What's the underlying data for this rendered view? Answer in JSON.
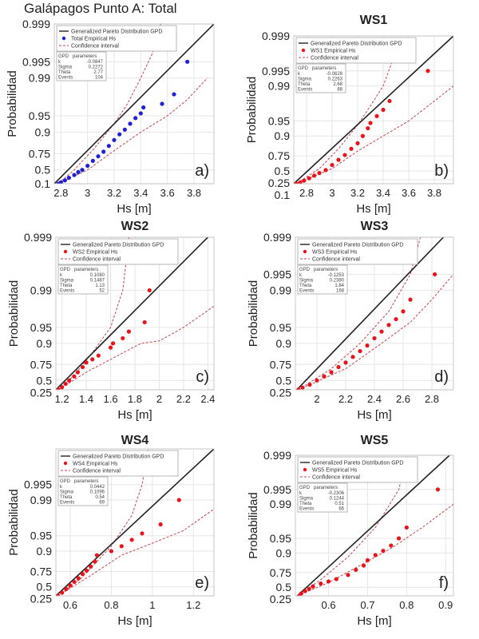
{
  "chart_data": [
    {
      "type": "scatter",
      "panel_label": "a)",
      "title": "Galápagos Punto A: Total",
      "xlabel": "Hs [m]",
      "ylabel": "Probabilidad",
      "xlim": [
        2.75,
        3.95
      ],
      "xticks": [
        2.8,
        3,
        3.2,
        3.4,
        3.6,
        3.8
      ],
      "ylim": [
        0.1,
        0.999
      ],
      "yticks": [
        0.1,
        0.5,
        0.75,
        0.9,
        0.95,
        0.99,
        0.995,
        0.999
      ],
      "y_scale": "probability",
      "grid": true,
      "legend_position": "top-left",
      "point_color": "#1f1fd6",
      "legend": [
        "Generalized Pareto Distribution GPD",
        "Total Empirical Hs",
        "Confidence interval"
      ],
      "params": {
        "header": [
          "GPD",
          "parameters"
        ],
        "rows": [
          [
            "k",
            "-0.0847"
          ],
          [
            "Sigma",
            "0.2272"
          ],
          [
            "Theta",
            "2.77"
          ],
          [
            "Events",
            "104"
          ]
        ]
      },
      "gpd_line": [
        [
          2.75,
          0.1
        ],
        [
          3.95,
          0.999
        ]
      ],
      "ci_upper": [
        [
          2.78,
          0.1
        ],
        [
          2.9,
          0.5
        ],
        [
          3.05,
          0.8
        ],
        [
          3.2,
          0.93
        ],
        [
          3.3,
          0.97
        ],
        [
          3.4,
          0.99
        ],
        [
          3.5,
          0.997
        ],
        [
          3.55,
          0.999
        ]
      ],
      "ci_lower": [
        [
          2.78,
          0.1
        ],
        [
          3.0,
          0.5
        ],
        [
          3.2,
          0.78
        ],
        [
          3.4,
          0.9
        ],
        [
          3.6,
          0.95
        ],
        [
          3.75,
          0.975
        ],
        [
          3.9,
          0.99
        ]
      ],
      "points": [
        [
          2.78,
          0.1
        ],
        [
          2.8,
          0.15
        ],
        [
          2.83,
          0.22
        ],
        [
          2.86,
          0.3
        ],
        [
          2.9,
          0.38
        ],
        [
          2.93,
          0.45
        ],
        [
          2.96,
          0.5
        ],
        [
          3.0,
          0.58
        ],
        [
          3.04,
          0.66
        ],
        [
          3.08,
          0.72
        ],
        [
          3.12,
          0.77
        ],
        [
          3.16,
          0.82
        ],
        [
          3.2,
          0.86
        ],
        [
          3.24,
          0.89
        ],
        [
          3.28,
          0.91
        ],
        [
          3.32,
          0.93
        ],
        [
          3.36,
          0.945
        ],
        [
          3.4,
          0.955
        ],
        [
          3.42,
          0.965
        ],
        [
          3.56,
          0.97
        ],
        [
          3.65,
          0.98
        ],
        [
          3.75,
          0.995
        ]
      ]
    },
    {
      "type": "scatter",
      "panel_label": "b)",
      "title": "WS1",
      "xlabel": "Hs [m]",
      "ylabel": "Probabilidad",
      "xlim": [
        2.7,
        3.95
      ],
      "xticks": [
        2.8,
        3,
        3.2,
        3.4,
        3.6,
        3.8
      ],
      "ylim": [
        0.1,
        0.999
      ],
      "yticks": [
        0.1,
        0.25,
        0.5,
        0.75,
        0.9,
        0.95,
        0.99,
        0.995,
        0.999
      ],
      "y_scale": "probability",
      "grid": true,
      "legend_position": "top-left",
      "point_color": "#e8141c",
      "legend": [
        "Generalized Pareto Distribution GPD",
        "WS1 Empirical Hs",
        "Confidence interval"
      ],
      "params": {
        "header": [
          "GPD",
          "parameters"
        ],
        "rows": [
          [
            "k",
            "-0.0628"
          ],
          [
            "Sigma",
            "0.2263"
          ],
          [
            "Theta",
            "2.68"
          ],
          [
            "Events",
            "88"
          ]
        ]
      },
      "gpd_line": [
        [
          2.7,
          0.1
        ],
        [
          3.95,
          0.999
        ]
      ],
      "ci_upper": [
        [
          2.72,
          0.1
        ],
        [
          2.9,
          0.55
        ],
        [
          3.05,
          0.82
        ],
        [
          3.2,
          0.94
        ],
        [
          3.3,
          0.975
        ],
        [
          3.4,
          0.99
        ],
        [
          3.5,
          0.998
        ]
      ],
      "ci_lower": [
        [
          2.72,
          0.1
        ],
        [
          3.0,
          0.55
        ],
        [
          3.2,
          0.8
        ],
        [
          3.4,
          0.9
        ],
        [
          3.6,
          0.95
        ],
        [
          3.8,
          0.98
        ],
        [
          3.95,
          0.99
        ]
      ],
      "points": [
        [
          2.72,
          0.1
        ],
        [
          2.75,
          0.15
        ],
        [
          2.78,
          0.22
        ],
        [
          2.82,
          0.3
        ],
        [
          2.86,
          0.38
        ],
        [
          2.9,
          0.45
        ],
        [
          2.95,
          0.52
        ],
        [
          3.0,
          0.62
        ],
        [
          3.05,
          0.7
        ],
        [
          3.1,
          0.76
        ],
        [
          3.15,
          0.82
        ],
        [
          3.2,
          0.86
        ],
        [
          3.24,
          0.9
        ],
        [
          3.28,
          0.93
        ],
        [
          3.3,
          0.945
        ],
        [
          3.35,
          0.96
        ],
        [
          3.4,
          0.97
        ],
        [
          3.45,
          0.98
        ],
        [
          3.75,
          0.995
        ]
      ]
    },
    {
      "type": "scatter",
      "panel_label": "c)",
      "title": "WS2",
      "xlabel": "Hs [m]",
      "ylabel": "Probabilidad",
      "xlim": [
        1.15,
        2.45
      ],
      "xticks": [
        1.2,
        1.4,
        1.6,
        1.8,
        2,
        2.2,
        2.4
      ],
      "ylim": [
        0.25,
        0.999
      ],
      "yticks": [
        0.25,
        0.5,
        0.75,
        0.9,
        0.95,
        0.99,
        0.999
      ],
      "y_scale": "probability",
      "grid": true,
      "legend_position": "top-left",
      "point_color": "#e8141c",
      "legend": [
        "Generalized Pareto Distribution GPD",
        "WS2 Empirical Hs",
        "Confidence interval"
      ],
      "params": {
        "header": [
          "GPD",
          "parameters"
        ],
        "rows": [
          [
            "k",
            "0.1080"
          ],
          [
            "Sigma",
            "0.1487"
          ],
          [
            "Theta",
            "1.13"
          ],
          [
            "Events",
            "52"
          ]
        ]
      },
      "gpd_line": [
        [
          1.15,
          0.25
        ],
        [
          2.4,
          0.999
        ]
      ],
      "ci_upper": [
        [
          1.17,
          0.25
        ],
        [
          1.3,
          0.6
        ],
        [
          1.45,
          0.85
        ],
        [
          1.6,
          0.95
        ],
        [
          1.7,
          0.99
        ],
        [
          1.75,
          0.999
        ]
      ],
      "ci_lower": [
        [
          1.17,
          0.25
        ],
        [
          1.4,
          0.65
        ],
        [
          1.6,
          0.8
        ],
        [
          1.85,
          0.9
        ],
        [
          2.0,
          0.91
        ],
        [
          2.2,
          0.95
        ],
        [
          2.45,
          0.98
        ]
      ],
      "points": [
        [
          1.17,
          0.25
        ],
        [
          1.2,
          0.33
        ],
        [
          1.23,
          0.42
        ],
        [
          1.26,
          0.5
        ],
        [
          1.3,
          0.58
        ],
        [
          1.33,
          0.65
        ],
        [
          1.37,
          0.72
        ],
        [
          1.4,
          0.77
        ],
        [
          1.45,
          0.8
        ],
        [
          1.5,
          0.83
        ],
        [
          1.6,
          0.88
        ],
        [
          1.62,
          0.9
        ],
        [
          1.7,
          0.92
        ],
        [
          1.75,
          0.94
        ],
        [
          1.88,
          0.96
        ],
        [
          1.92,
          0.99
        ]
      ]
    },
    {
      "type": "scatter",
      "panel_label": "d)",
      "title": "WS3",
      "xlabel": "Hs [m]",
      "ylabel": "Probabilidad",
      "xlim": [
        1.85,
        2.95
      ],
      "xticks": [
        2,
        2.2,
        2.4,
        2.6,
        2.8
      ],
      "ylim": [
        0.25,
        0.999
      ],
      "yticks": [
        0.25,
        0.5,
        0.75,
        0.9,
        0.95,
        0.99,
        0.995,
        0.999
      ],
      "y_scale": "probability",
      "grid": true,
      "legend_position": "top-left",
      "point_color": "#e8141c",
      "legend": [
        "Generalized Pareto Distribution GPD",
        "WS3 Empirical Hs",
        "Confidence interval"
      ],
      "params": {
        "header": [
          "GPD",
          "parameters"
        ],
        "rows": [
          [
            "k",
            "-0.1253"
          ],
          [
            "Sigma",
            "0.2380"
          ],
          [
            "Theta",
            "1.84"
          ],
          [
            "Events",
            "168"
          ]
        ]
      },
      "gpd_line": [
        [
          1.86,
          0.25
        ],
        [
          2.88,
          0.999
        ]
      ],
      "ci_upper": [
        [
          1.87,
          0.25
        ],
        [
          2.1,
          0.7
        ],
        [
          2.3,
          0.9
        ],
        [
          2.5,
          0.975
        ],
        [
          2.65,
          0.995
        ],
        [
          2.72,
          0.999
        ]
      ],
      "ci_lower": [
        [
          1.87,
          0.25
        ],
        [
          2.2,
          0.7
        ],
        [
          2.45,
          0.9
        ],
        [
          2.65,
          0.96
        ],
        [
          2.8,
          0.985
        ],
        [
          2.95,
          0.995
        ]
      ],
      "points": [
        [
          1.87,
          0.25
        ],
        [
          1.9,
          0.32
        ],
        [
          1.95,
          0.4
        ],
        [
          2.0,
          0.5
        ],
        [
          2.05,
          0.58
        ],
        [
          2.1,
          0.65
        ],
        [
          2.15,
          0.72
        ],
        [
          2.2,
          0.77
        ],
        [
          2.25,
          0.82
        ],
        [
          2.3,
          0.86
        ],
        [
          2.35,
          0.89
        ],
        [
          2.4,
          0.92
        ],
        [
          2.45,
          0.94
        ],
        [
          2.5,
          0.955
        ],
        [
          2.55,
          0.965
        ],
        [
          2.6,
          0.975
        ],
        [
          2.65,
          0.985
        ],
        [
          2.82,
          0.995
        ]
      ]
    },
    {
      "type": "scatter",
      "panel_label": "e)",
      "title": "WS4",
      "xlabel": "Hs [m]",
      "ylabel": "Probabilidad",
      "xlim": [
        0.53,
        1.3
      ],
      "xticks": [
        0.6,
        0.8,
        1,
        1.2
      ],
      "ylim": [
        0.25,
        0.999
      ],
      "yticks": [
        0.25,
        0.5,
        0.75,
        0.9,
        0.95,
        0.99,
        0.995
      ],
      "y_scale": "probability",
      "grid": true,
      "legend_position": "top-left",
      "point_color": "#e8141c",
      "legend": [
        "Generalized Pareto Distribution GPD",
        "WS4 Empirical Hs",
        "Confidence interval"
      ],
      "params": {
        "header": [
          "GPD",
          "parameters"
        ],
        "rows": [
          [
            "k",
            "0.0442"
          ],
          [
            "Sigma",
            "0.1096"
          ],
          [
            "Theta",
            "0.54"
          ],
          [
            "Events",
            "69"
          ]
        ]
      },
      "gpd_line": [
        [
          0.53,
          0.25
        ],
        [
          1.3,
          0.999
        ]
      ],
      "ci_upper": [
        [
          0.54,
          0.25
        ],
        [
          0.65,
          0.65
        ],
        [
          0.8,
          0.92
        ],
        [
          0.9,
          0.98
        ],
        [
          0.95,
          0.995
        ],
        [
          0.98,
          0.999
        ]
      ],
      "ci_lower": [
        [
          0.54,
          0.25
        ],
        [
          0.7,
          0.7
        ],
        [
          0.85,
          0.88
        ],
        [
          1.0,
          0.93
        ],
        [
          1.15,
          0.96
        ],
        [
          1.3,
          0.985
        ]
      ],
      "points": [
        [
          0.54,
          0.25
        ],
        [
          0.56,
          0.35
        ],
        [
          0.58,
          0.45
        ],
        [
          0.6,
          0.53
        ],
        [
          0.62,
          0.6
        ],
        [
          0.64,
          0.66
        ],
        [
          0.66,
          0.72
        ],
        [
          0.68,
          0.76
        ],
        [
          0.7,
          0.8
        ],
        [
          0.72,
          0.84
        ],
        [
          0.73,
          0.88
        ],
        [
          0.8,
          0.9
        ],
        [
          0.85,
          0.92
        ],
        [
          0.9,
          0.94
        ],
        [
          0.95,
          0.955
        ],
        [
          1.04,
          0.97
        ],
        [
          1.13,
          0.99
        ]
      ]
    },
    {
      "type": "scatter",
      "panel_label": "f)",
      "title": "WS5",
      "xlabel": "Hs [m]",
      "ylabel": "Probabilidad",
      "xlim": [
        0.515,
        0.92
      ],
      "xticks": [
        0.6,
        0.7,
        0.8,
        0.9
      ],
      "ylim": [
        0.25,
        0.999
      ],
      "yticks": [
        0.25,
        0.5,
        0.75,
        0.9,
        0.95,
        0.99,
        0.995,
        0.999
      ],
      "y_scale": "probability",
      "grid": true,
      "legend_position": "top-left",
      "point_color": "#e8141c",
      "legend": [
        "Generalized Pareto Distribution GPD",
        "WS5 Empirical Hs",
        "Confidence interval"
      ],
      "params": {
        "header": [
          "GPD",
          "parameters"
        ],
        "rows": [
          [
            "k",
            "-0.2306"
          ],
          [
            "Sigma",
            "0.1244"
          ],
          [
            "Theta",
            "0.51"
          ],
          [
            "Events",
            "66"
          ]
        ]
      },
      "gpd_line": [
        [
          0.52,
          0.25
        ],
        [
          0.91,
          0.999
        ]
      ],
      "ci_upper": [
        [
          0.52,
          0.25
        ],
        [
          0.58,
          0.65
        ],
        [
          0.65,
          0.88
        ],
        [
          0.72,
          0.97
        ],
        [
          0.78,
          0.995
        ],
        [
          0.8,
          0.999
        ]
      ],
      "ci_lower": [
        [
          0.52,
          0.25
        ],
        [
          0.6,
          0.6
        ],
        [
          0.68,
          0.82
        ],
        [
          0.76,
          0.92
        ],
        [
          0.84,
          0.97
        ],
        [
          0.92,
          0.99
        ]
      ],
      "points": [
        [
          0.525,
          0.25
        ],
        [
          0.53,
          0.33
        ],
        [
          0.54,
          0.4
        ],
        [
          0.55,
          0.46
        ],
        [
          0.56,
          0.52
        ],
        [
          0.58,
          0.58
        ],
        [
          0.6,
          0.62
        ],
        [
          0.62,
          0.66
        ],
        [
          0.65,
          0.72
        ],
        [
          0.67,
          0.78
        ],
        [
          0.69,
          0.82
        ],
        [
          0.7,
          0.86
        ],
        [
          0.72,
          0.89
        ],
        [
          0.74,
          0.91
        ],
        [
          0.76,
          0.93
        ],
        [
          0.78,
          0.95
        ],
        [
          0.8,
          0.97
        ],
        [
          0.88,
          0.995
        ]
      ]
    }
  ]
}
